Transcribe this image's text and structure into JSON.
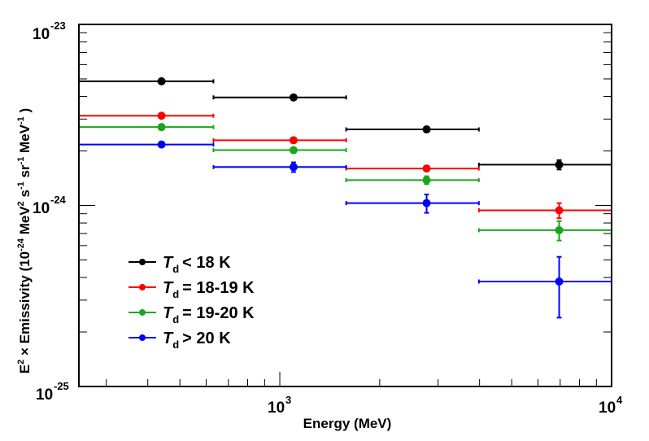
{
  "chart_data": {
    "type": "scatter",
    "title": "",
    "xlabel": "Energy (MeV)",
    "ylabel": "E² × Emissivity (10⁻²⁴ MeV² s⁻¹ sr⁻¹ MeV⁻¹)",
    "ylabel_parts": {
      "main": "E",
      "sup1": "2",
      "mid": " × Emissivity (10",
      "sup2": "-24",
      "unit1": " MeV",
      "sup3": "2",
      "unit2": " s",
      "sup4": "-1",
      "unit3": " sr",
      "sup5": "-1",
      "unit4": " MeV",
      "sup6": "-1",
      "end": " )"
    },
    "xscale": "log",
    "yscale": "log",
    "xlim": [
      248,
      10000
    ],
    "ylim": [
      1e-25,
      1e-23
    ],
    "x_ticks": [
      {
        "base": "10",
        "exp": "3",
        "value": 1000
      },
      {
        "base": "10",
        "exp": "4",
        "value": 10000
      }
    ],
    "y_ticks": [
      {
        "base": "10",
        "exp": "-25",
        "value": 1e-25
      },
      {
        "base": "10",
        "exp": "-24",
        "value": 1e-24
      },
      {
        "base": "10",
        "exp": "-23",
        "value": 1e-23
      }
    ],
    "bin_edges": [
      248,
      631,
      1585,
      3981,
      10000
    ],
    "x": [
      440,
      1100,
      2770,
      6950
    ],
    "grid": false,
    "legend_position": "lower-left",
    "series": [
      {
        "name": "< 18 K",
        "legend_symbol": "T",
        "legend_sub": "d",
        "color": "#000000",
        "values": [
          4.85e-24,
          3.95e-24,
          2.63e-24,
          1.68e-24
        ],
        "yerr": [
          5e-26,
          5e-26,
          5e-26,
          1e-25
        ]
      },
      {
        "name": "= 18-19 K",
        "legend_symbol": "T",
        "legend_sub": "d",
        "color": "#ff0000",
        "values": [
          3.13e-24,
          2.29e-24,
          1.6e-24,
          9.4e-25
        ],
        "yerr": [
          5e-26,
          5e-26,
          5e-26,
          9e-26
        ]
      },
      {
        "name": "= 19-20 K",
        "legend_symbol": "T",
        "legend_sub": "d",
        "color": "#1aa61a",
        "values": [
          2.71e-24,
          2.02e-24,
          1.38e-24,
          7.3e-25
        ],
        "yerr": [
          4e-26,
          4e-26,
          7e-26,
          9e-26
        ]
      },
      {
        "name": "> 20 K",
        "legend_symbol": "T",
        "legend_sub": "d",
        "color": "#0000ff",
        "values": [
          2.17e-24,
          1.63e-24,
          1.03e-24,
          3.8e-25
        ],
        "yerr": [
          4e-26,
          1e-25,
          1.2e-25,
          1.4e-25
        ]
      }
    ]
  }
}
